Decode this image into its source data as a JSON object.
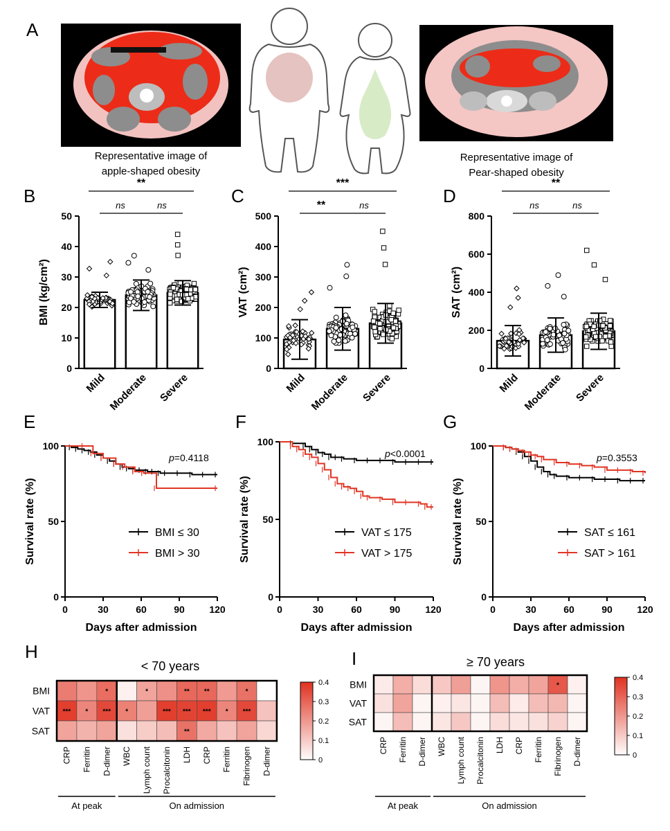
{
  "panel_letters": [
    "A",
    "B",
    "C",
    "D",
    "E",
    "F",
    "G",
    "H",
    "I"
  ],
  "panel_a": {
    "left_caption": [
      "Representative image of",
      "apple-shaped obesity"
    ],
    "right_caption": [
      "Representative image of",
      "Pear-shaped obesity"
    ]
  },
  "colors": {
    "red": "#e03524",
    "black": "#000000",
    "apple": "#e5c3c0",
    "pear": "#d8ebc7",
    "fat_pink": "#f4c6c4",
    "visceral_red": "#ec2c18",
    "organ_gray": "#8d8d8d"
  },
  "chart_data": [
    {
      "id": "B",
      "type": "bar",
      "ylabel": "BMI (kg/cm²)",
      "categories": [
        "Mild",
        "Moderate",
        "Severe"
      ],
      "values": [
        22.5,
        24.0,
        24.8
      ],
      "errors": [
        2.5,
        5,
        4
      ],
      "ylim": [
        0,
        50
      ],
      "yticks": [
        0,
        10,
        20,
        30,
        40,
        50
      ],
      "markers": [
        "diamond",
        "circle",
        "square"
      ],
      "point_range": [
        [
          15,
          35
        ],
        [
          15,
          37
        ],
        [
          13,
          44
        ]
      ],
      "point_counts": [
        55,
        80,
        130
      ],
      "significance": [
        {
          "from": 0,
          "to": 2,
          "label": "**",
          "level": 1
        },
        {
          "from": 0,
          "to": 1,
          "label": "ns",
          "level": 0
        },
        {
          "from": 1,
          "to": 2,
          "label": "ns",
          "level": 0
        }
      ]
    },
    {
      "id": "C",
      "type": "bar",
      "ylabel": "VAT (cm²)",
      "categories": [
        "Mild",
        "Moderate",
        "Severe"
      ],
      "values": [
        95,
        130,
        148
      ],
      "errors": [
        65,
        70,
        65
      ],
      "ylim": [
        0,
        500
      ],
      "yticks": [
        0,
        100,
        200,
        300,
        400,
        500
      ],
      "markers": [
        "diamond",
        "circle",
        "square"
      ],
      "point_range": [
        [
          5,
          250
        ],
        [
          5,
          340
        ],
        [
          5,
          450
        ]
      ],
      "point_counts": [
        45,
        75,
        130
      ],
      "significance": [
        {
          "from": 0,
          "to": 2,
          "label": "***",
          "level": 1
        },
        {
          "from": 0,
          "to": 1,
          "label": "**",
          "level": 0
        },
        {
          "from": 1,
          "to": 2,
          "label": "ns",
          "level": 0
        }
      ]
    },
    {
      "id": "D",
      "type": "bar",
      "ylabel": "SAT (cm²)",
      "categories": [
        "Mild",
        "Moderate",
        "Severe"
      ],
      "values": [
        145,
        175,
        195
      ],
      "errors": [
        80,
        90,
        95
      ],
      "ylim": [
        0,
        800
      ],
      "yticks": [
        0,
        200,
        400,
        600,
        800
      ],
      "markers": [
        "diamond",
        "circle",
        "square"
      ],
      "point_range": [
        [
          20,
          420
        ],
        [
          20,
          490
        ],
        [
          20,
          620
        ]
      ],
      "point_counts": [
        45,
        75,
        130
      ],
      "significance": [
        {
          "from": 0,
          "to": 2,
          "label": "**",
          "level": 1
        },
        {
          "from": 0,
          "to": 1,
          "label": "ns",
          "level": 0
        },
        {
          "from": 1,
          "to": 2,
          "label": "ns",
          "level": 0
        }
      ]
    },
    {
      "id": "E",
      "type": "line",
      "ylabel": "Survival rate (%)",
      "xlabel": "Days after admission",
      "xlim": [
        0,
        120
      ],
      "ylim": [
        0,
        100
      ],
      "xticks": [
        0,
        30,
        60,
        90,
        120
      ],
      "yticks": [
        0,
        50,
        100
      ],
      "pvalue": "=0.4118",
      "series": [
        {
          "name": "BMI ≤ 30",
          "color": "#000000",
          "x": [
            0,
            5,
            10,
            15,
            20,
            25,
            30,
            35,
            40,
            45,
            50,
            55,
            60,
            65,
            70,
            75,
            80,
            90,
            100,
            110,
            120
          ],
          "y": [
            100,
            99,
            98,
            97,
            96,
            94,
            92,
            90,
            88,
            86,
            85,
            84,
            84,
            83,
            83,
            82,
            82,
            82,
            81,
            81,
            81
          ]
        },
        {
          "name": "BMI > 30",
          "color": "#e03524",
          "x": [
            0,
            15,
            22,
            30,
            40,
            47,
            55,
            62,
            72,
            120
          ],
          "y": [
            100,
            100,
            95,
            92,
            88,
            86,
            83,
            82,
            72,
            72
          ]
        }
      ]
    },
    {
      "id": "F",
      "type": "line",
      "ylabel": "Survival rate (%)",
      "xlabel": "Days after admission",
      "xlim": [
        0,
        120
      ],
      "ylim": [
        0,
        100
      ],
      "xticks": [
        0,
        30,
        60,
        90,
        120
      ],
      "yticks": [
        0,
        50,
        100
      ],
      "pvalue": "<0.0001",
      "series": [
        {
          "name": "VAT ≤ 175",
          "color": "#000000",
          "x": [
            0,
            10,
            20,
            25,
            30,
            35,
            40,
            45,
            50,
            60,
            70,
            80,
            90,
            100,
            110,
            120
          ],
          "y": [
            100,
            99,
            97,
            95,
            93,
            92,
            90,
            90,
            89,
            88,
            88,
            88,
            87,
            87,
            87,
            87
          ]
        },
        {
          "name": "VAT > 175",
          "color": "#e03524",
          "x": [
            0,
            10,
            15,
            20,
            25,
            30,
            35,
            40,
            45,
            50,
            55,
            60,
            65,
            70,
            80,
            90,
            100,
            110,
            115,
            120
          ],
          "y": [
            100,
            97,
            95,
            92,
            90,
            86,
            82,
            77,
            73,
            71,
            70,
            68,
            65,
            64,
            63,
            61,
            61,
            60,
            58,
            58
          ]
        }
      ]
    },
    {
      "id": "G",
      "type": "line",
      "ylabel": "Survival rate (%)",
      "xlabel": "Days after admission",
      "xlim": [
        0,
        120
      ],
      "ylim": [
        0,
        100
      ],
      "xticks": [
        0,
        30,
        60,
        90,
        120
      ],
      "yticks": [
        0,
        50,
        100
      ],
      "pvalue": "=0.3553",
      "series": [
        {
          "name": "SAT ≤ 161",
          "color": "#000000",
          "x": [
            0,
            10,
            15,
            20,
            25,
            30,
            35,
            40,
            45,
            50,
            60,
            70,
            80,
            90,
            100,
            110,
            120
          ],
          "y": [
            100,
            99,
            98,
            96,
            93,
            90,
            86,
            83,
            81,
            80,
            79,
            79,
            78,
            78,
            77,
            77,
            77
          ]
        },
        {
          "name": "SAT > 161",
          "color": "#e03524",
          "x": [
            0,
            10,
            15,
            20,
            25,
            30,
            35,
            40,
            50,
            60,
            70,
            80,
            90,
            100,
            110,
            120
          ],
          "y": [
            100,
            99,
            98,
            97,
            96,
            94,
            93,
            91,
            89,
            88,
            87,
            86,
            84,
            84,
            83,
            82
          ]
        }
      ]
    },
    {
      "id": "H",
      "type": "heatmap",
      "title": "< 70 years",
      "rows": [
        "BMI",
        "VAT",
        "SAT"
      ],
      "columns": [
        "CRP",
        "Ferritin",
        "D-dimer",
        "WBC",
        "Lymph count",
        "Procalcitonin",
        "LDH",
        "CRP",
        "Ferritin",
        "Fibrinogen",
        "D-dimer"
      ],
      "groups": [
        {
          "label": "At peak",
          "start": 0,
          "end": 2
        },
        {
          "label": "On admission",
          "start": 3,
          "end": 10
        }
      ],
      "values": [
        [
          0.26,
          0.21,
          0.29,
          0.03,
          0.18,
          0.22,
          0.3,
          0.3,
          0.2,
          0.28,
          0.0
        ],
        [
          0.38,
          0.24,
          0.36,
          0.25,
          0.19,
          0.38,
          0.37,
          0.38,
          0.24,
          0.36,
          0.12
        ],
        [
          0.18,
          0.15,
          0.18,
          0.06,
          0.1,
          0.13,
          0.28,
          0.17,
          0.12,
          0.18,
          0.08
        ]
      ],
      "stars": [
        [
          "",
          "",
          "*",
          "",
          "*",
          "",
          "**",
          "**",
          "",
          "*",
          ""
        ],
        [
          "***",
          "*",
          "***",
          "*",
          "",
          "***",
          "***",
          "***",
          "*",
          "***",
          ""
        ],
        [
          "",
          "",
          "",
          "",
          "",
          "",
          "**",
          "",
          "",
          "",
          ""
        ]
      ],
      "colorbar": {
        "min": 0,
        "max": 0.4,
        "ticks": [
          "0",
          "0.1",
          "0.2",
          "0.3",
          "0.4"
        ]
      }
    },
    {
      "id": "I",
      "type": "heatmap",
      "title": "≥ 70 years",
      "rows": [
        "BMI",
        "VAT",
        "SAT"
      ],
      "columns": [
        "CRP",
        "Ferritin",
        "D-dimer",
        "WBC",
        "Lymph count",
        "Procalcitonin",
        "LDH",
        "CRP",
        "Ferritin",
        "Fibrinogen",
        "D-dimer"
      ],
      "groups": [
        {
          "label": "At peak",
          "start": 0,
          "end": 2
        },
        {
          "label": "On admission",
          "start": 3,
          "end": 10
        }
      ],
      "values": [
        [
          0.04,
          0.16,
          0.07,
          0.11,
          0.19,
          0.02,
          0.21,
          0.16,
          0.18,
          0.33,
          0.03
        ],
        [
          0.06,
          0.18,
          0.02,
          0.03,
          0.05,
          0.02,
          0.13,
          0.04,
          0.13,
          0.14,
          0.02
        ],
        [
          0.02,
          0.13,
          0.02,
          0.05,
          0.11,
          0.02,
          0.07,
          0.05,
          0.06,
          0.09,
          0.02
        ]
      ],
      "stars": [
        [
          "",
          "",
          "",
          "",
          "",
          "",
          "",
          "",
          "",
          "*",
          ""
        ],
        [
          "",
          "",
          "",
          "",
          "",
          "",
          "",
          "",
          "",
          "",
          ""
        ],
        [
          "",
          "",
          "",
          "",
          "",
          "",
          "",
          "",
          "",
          "",
          ""
        ]
      ],
      "colorbar": {
        "min": 0,
        "max": 0.4,
        "ticks": [
          "0",
          "0.1",
          "0.2",
          "0.3",
          "0.4"
        ]
      }
    }
  ]
}
